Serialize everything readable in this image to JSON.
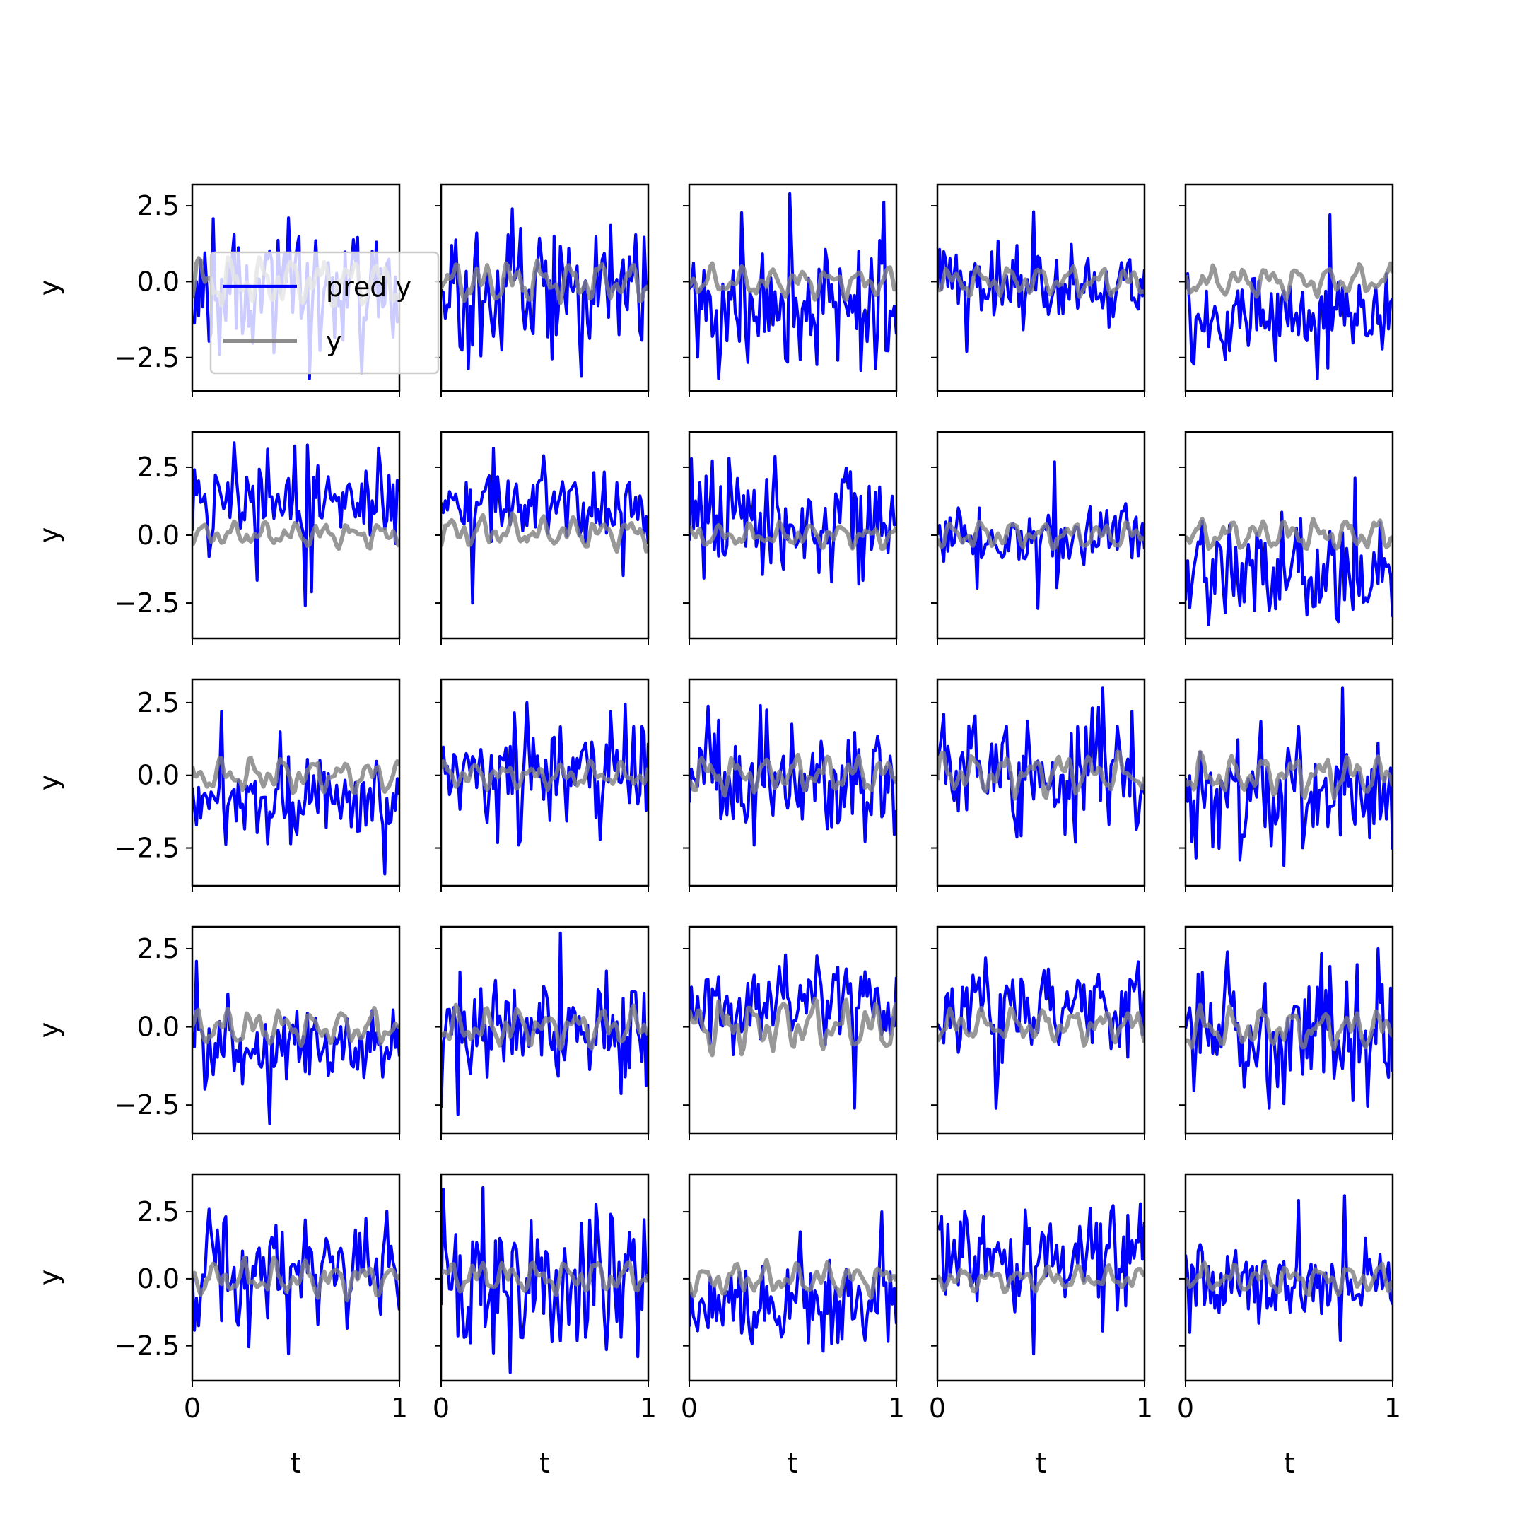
{
  "figure": {
    "rows": 5,
    "cols": 5,
    "xlabel": "t",
    "ylabel": "y",
    "legend": {
      "location": "center-left of first panel",
      "entries": [
        {
          "label": "pred y",
          "color": "#0000ff"
        },
        {
          "label": "y",
          "color": "#808080"
        }
      ]
    },
    "colors": {
      "pred_y": "#0000ff",
      "y": "#808080",
      "y_alpha": 0.9
    },
    "xticks": [
      "0",
      "1"
    ],
    "yticks": [
      "2.5",
      "0.0",
      "−2.5"
    ],
    "xtick_values": [
      0,
      1
    ],
    "ytick_values": [
      2.5,
      0.0,
      -2.5
    ]
  },
  "chart_data": {
    "type": "line",
    "layout": "5x5 grid of small multiples, shared x axis, shared y axis per row",
    "x": {
      "min": 0,
      "max": 1,
      "points_per_series": 100
    },
    "row_ylim": [
      [
        -3.6,
        3.2
      ],
      [
        -3.8,
        3.8
      ],
      [
        -3.8,
        3.3
      ],
      [
        -3.4,
        3.2
      ],
      [
        -3.8,
        3.9
      ]
    ],
    "series_names": [
      "pred y",
      "y"
    ],
    "panels": [
      {
        "row": 0,
        "col": 0,
        "pred_y_range": [
          -3.2,
          2.1
        ],
        "y_range": [
          -0.8,
          0.8
        ],
        "seed": 11
      },
      {
        "row": 0,
        "col": 1,
        "pred_y_range": [
          -3.1,
          2.4
        ],
        "y_range": [
          -0.7,
          0.7
        ],
        "seed": 12
      },
      {
        "row": 0,
        "col": 2,
        "pred_y_range": [
          -3.2,
          2.9
        ],
        "y_range": [
          -0.6,
          0.6
        ],
        "seed": 13
      },
      {
        "row": 0,
        "col": 3,
        "pred_y_range": [
          -2.3,
          2.3
        ],
        "y_range": [
          -0.5,
          0.5
        ],
        "seed": 14
      },
      {
        "row": 0,
        "col": 4,
        "pred_y_range": [
          -3.2,
          2.2
        ],
        "y_range": [
          -0.6,
          0.6
        ],
        "seed": 15
      },
      {
        "row": 1,
        "col": 0,
        "pred_y_range": [
          -2.6,
          3.4
        ],
        "y_range": [
          -0.5,
          0.5
        ],
        "seed": 21
      },
      {
        "row": 1,
        "col": 1,
        "pred_y_range": [
          -2.5,
          3.2
        ],
        "y_range": [
          -0.6,
          0.8
        ],
        "seed": 22
      },
      {
        "row": 1,
        "col": 2,
        "pred_y_range": [
          -1.8,
          2.9
        ],
        "y_range": [
          -0.5,
          0.5
        ],
        "seed": 23
      },
      {
        "row": 1,
        "col": 3,
        "pred_y_range": [
          -2.7,
          2.7
        ],
        "y_range": [
          -0.5,
          0.5
        ],
        "seed": 24
      },
      {
        "row": 1,
        "col": 4,
        "pred_y_range": [
          -3.3,
          2.1
        ],
        "y_range": [
          -0.5,
          0.6
        ],
        "seed": 25
      },
      {
        "row": 2,
        "col": 0,
        "pred_y_range": [
          -3.4,
          2.2
        ],
        "y_range": [
          -0.6,
          0.6
        ],
        "seed": 31
      },
      {
        "row": 2,
        "col": 1,
        "pred_y_range": [
          -2.4,
          2.5
        ],
        "y_range": [
          -0.5,
          0.5
        ],
        "seed": 32
      },
      {
        "row": 2,
        "col": 2,
        "pred_y_range": [
          -2.4,
          2.4
        ],
        "y_range": [
          -0.7,
          0.7
        ],
        "seed": 33
      },
      {
        "row": 2,
        "col": 3,
        "pred_y_range": [
          -2.3,
          3.0
        ],
        "y_range": [
          -0.8,
          0.8
        ],
        "seed": 34
      },
      {
        "row": 2,
        "col": 4,
        "pred_y_range": [
          -3.1,
          3.0
        ],
        "y_range": [
          -0.8,
          0.8
        ],
        "seed": 35
      },
      {
        "row": 3,
        "col": 0,
        "pred_y_range": [
          -3.1,
          2.1
        ],
        "y_range": [
          -0.6,
          0.6
        ],
        "seed": 41
      },
      {
        "row": 3,
        "col": 1,
        "pred_y_range": [
          -2.8,
          3.0
        ],
        "y_range": [
          -0.7,
          0.7
        ],
        "seed": 42
      },
      {
        "row": 3,
        "col": 2,
        "pred_y_range": [
          -2.6,
          2.3
        ],
        "y_range": [
          -0.9,
          0.9
        ],
        "seed": 43
      },
      {
        "row": 3,
        "col": 3,
        "pred_y_range": [
          -2.6,
          2.2
        ],
        "y_range": [
          -0.6,
          0.6
        ],
        "seed": 44
      },
      {
        "row": 3,
        "col": 4,
        "pred_y_range": [
          -2.6,
          2.5
        ],
        "y_range": [
          -0.7,
          0.7
        ],
        "seed": 45
      },
      {
        "row": 4,
        "col": 0,
        "pred_y_range": [
          -2.8,
          2.6
        ],
        "y_range": [
          -0.8,
          0.8
        ],
        "seed": 51
      },
      {
        "row": 4,
        "col": 1,
        "pred_y_range": [
          -3.5,
          3.4
        ],
        "y_range": [
          -0.6,
          0.6
        ],
        "seed": 52
      },
      {
        "row": 4,
        "col": 2,
        "pred_y_range": [
          -2.7,
          2.5
        ],
        "y_range": [
          -0.7,
          0.7
        ],
        "seed": 53
      },
      {
        "row": 4,
        "col": 3,
        "pred_y_range": [
          -2.8,
          2.8
        ],
        "y_range": [
          -0.5,
          0.5
        ],
        "seed": 54
      },
      {
        "row": 4,
        "col": 4,
        "pred_y_range": [
          -2.3,
          3.1
        ],
        "y_range": [
          -0.6,
          0.6
        ],
        "seed": 55
      }
    ]
  }
}
